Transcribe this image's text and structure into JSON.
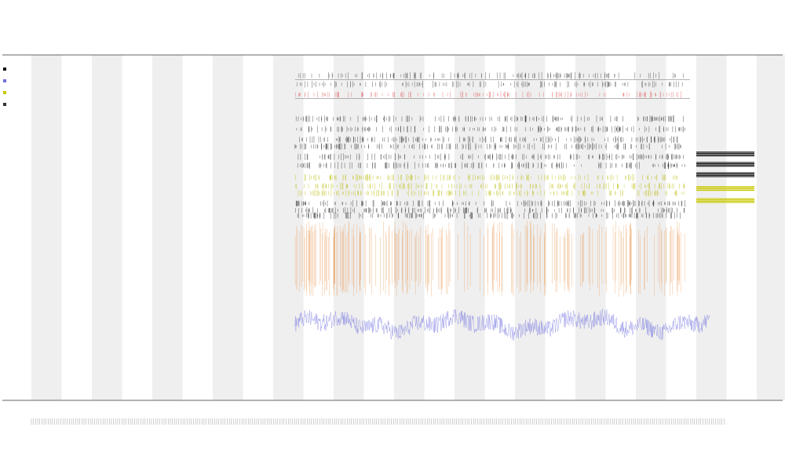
{
  "chart_data": {
    "type": "line",
    "title_lines": [
      "",
      "",
      ""
    ],
    "xlabel": "",
    "ylabel": "",
    "grid": "alternating-vertical-bands",
    "legend_placement": "top-left",
    "legend_entries": [
      "",
      "",
      "",
      ""
    ],
    "annotation_labels": [
      "",
      ""
    ],
    "x_range": [
      0,
      320
    ],
    "y_range": [
      0,
      1
    ],
    "data_x_range": [
      120,
      290
    ],
    "band_count": 23,
    "x_tick_count": 330,
    "series": [
      {
        "kind": "top-ticks",
        "color": "#333333",
        "rows": [
          0.94,
          0.915
        ]
      },
      {
        "kind": "top-ticks",
        "color": "#e05555",
        "rows": [
          0.885
        ]
      },
      {
        "kind": "event-ticks",
        "color": "#222222",
        "rows": [
          0.815,
          0.785,
          0.755,
          0.735,
          0.705,
          0.68
        ]
      },
      {
        "kind": "event-ticks",
        "color": "#b8b800",
        "rows": [
          0.645,
          0.62,
          0.6
        ]
      },
      {
        "kind": "event-ticks",
        "color": "#1a1a1a",
        "rows": [
          0.57,
          0.55,
          0.535
        ]
      },
      {
        "kind": "spikes",
        "color": "#e8924a",
        "top": 0.52,
        "bottom": 0.3
      },
      {
        "kind": "noise-line",
        "color": "#6f6fe0",
        "mean": 0.22,
        "amplitude": 0.05
      }
    ],
    "side_bars": [
      {
        "color": "#111111",
        "y": 0.72
      },
      {
        "color": "#111111",
        "y": 0.69
      },
      {
        "color": "#111111",
        "y": 0.66
      },
      {
        "color": "#c8c800",
        "y": 0.62
      },
      {
        "color": "#c8c800",
        "y": 0.585
      }
    ],
    "colors": {
      "band": "#efefef",
      "axis": "#666666",
      "event": "#222222",
      "red_ticks": "#e05555",
      "yellow": "#c8c800",
      "orange": "#e8924a",
      "blue": "#6f6fe0"
    }
  }
}
